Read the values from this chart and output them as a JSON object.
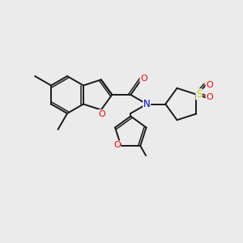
{
  "background_color": "#ebebeb",
  "bond_color": "#1a1a1a",
  "atom_colors": {
    "O": "#ff0000",
    "N": "#0000ee",
    "S": "#cccc00",
    "C": "#1a1a1a"
  },
  "figsize": [
    3.0,
    3.0
  ],
  "dpi": 100
}
